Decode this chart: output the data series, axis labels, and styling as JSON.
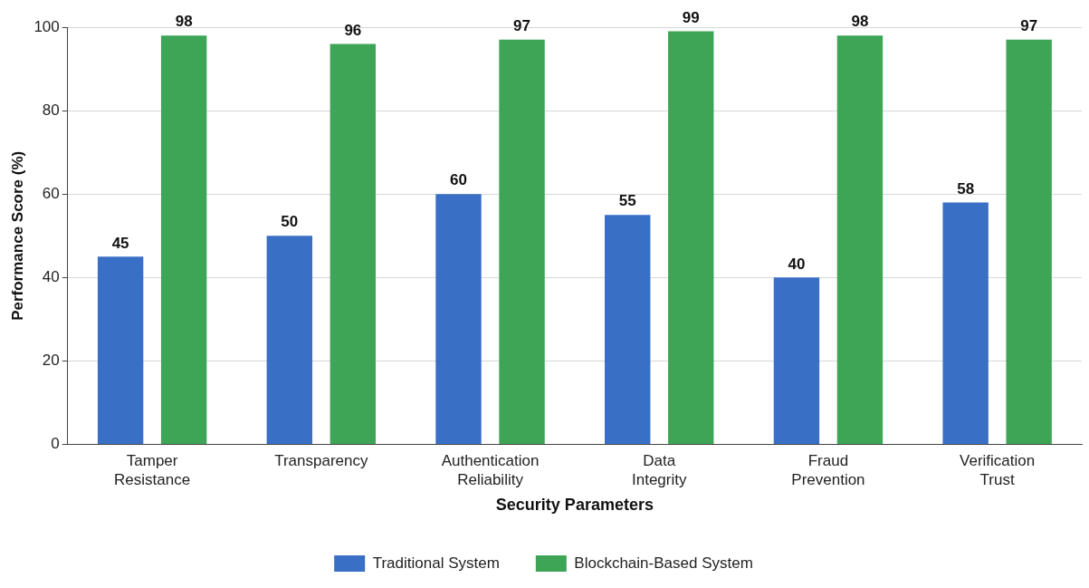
{
  "chart_data": {
    "type": "bar",
    "xlabel": "Security Parameters",
    "ylabel": "Performance Score (%)",
    "categories": [
      "Tamper Resistance",
      "Transparency",
      "Authentication Reliability",
      "Data Integrity",
      "Fraud Prevention",
      "Verification Trust"
    ],
    "series": [
      {
        "name": "Traditional System",
        "color": "#3a6fc6",
        "values": [
          45,
          50,
          60,
          55,
          40,
          58
        ]
      },
      {
        "name": "Blockchain-Based System",
        "color": "#3ea556",
        "values": [
          98,
          96,
          97,
          99,
          98,
          97
        ]
      }
    ],
    "ylim": [
      0,
      100
    ],
    "yticks": [
      0,
      20,
      40,
      60,
      80,
      100
    ],
    "grid": "y",
    "legend": "bottom",
    "data_labels": true
  }
}
